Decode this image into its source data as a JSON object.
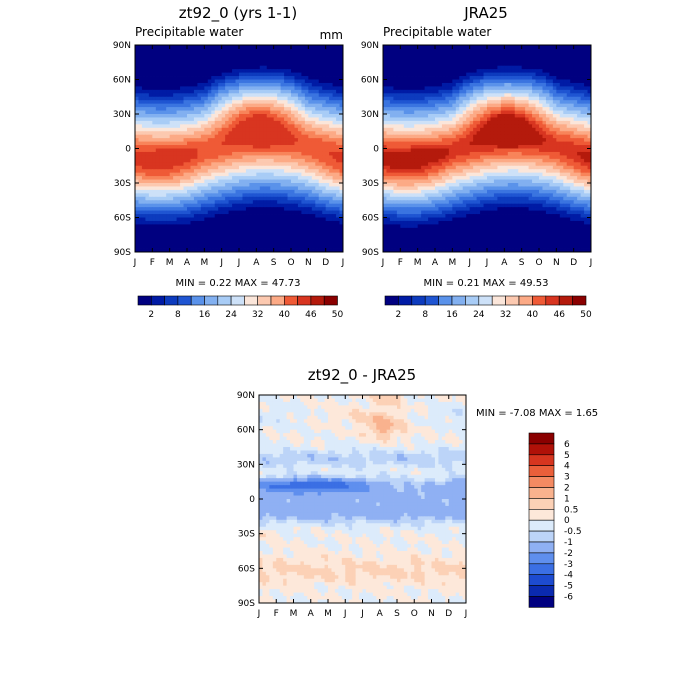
{
  "palette_full": [
    "#000080",
    "#001ba5",
    "#0d3bbe",
    "#1f55d2",
    "#3a74e0",
    "#5a92ea",
    "#82b0f0",
    "#a8ccf6",
    "#cde1f8",
    "#fbe6da",
    "#fcc9b0",
    "#fcaa86",
    "#f8845a",
    "#ef5a36",
    "#d83520",
    "#b41a0c",
    "#8a0000"
  ],
  "charts": [
    {
      "id": "model",
      "title": "zt92_0 (yrs 1-1)",
      "subtitle_left": "Precipitable water",
      "subtitle_right": "mm",
      "min_max": "MIN =    0.22 MAX =   47.73"
    },
    {
      "id": "obs",
      "title": "JRA25",
      "subtitle_left": "Precipitable water",
      "min_max": "MIN =    0.21 MAX =   49.53"
    },
    {
      "id": "diff",
      "title": "zt92_0 - JRA25",
      "min_max": "MIN =  -7.08 MAX =    1.65"
    }
  ],
  "chart_data": [
    {
      "type": "heatmap",
      "title": "zt92_0 (yrs 1-1)",
      "subtitle": "Precipitable water",
      "units": "mm",
      "x_ticks": [
        "J",
        "F",
        "M",
        "A",
        "M",
        "J",
        "J",
        "A",
        "S",
        "O",
        "N",
        "D",
        "J"
      ],
      "y_ticks": [
        "90N",
        "60N",
        "30N",
        "0",
        "30S",
        "60S",
        "90S"
      ],
      "y_values": [
        90,
        60,
        30,
        0,
        -30,
        -60,
        -90
      ],
      "min": 0.22,
      "max": 47.73,
      "colorbar_labels": [
        "2",
        "8",
        "16",
        "24",
        "32",
        "40",
        "46",
        "50"
      ],
      "contour_levels": [
        2,
        4,
        6,
        8,
        10,
        13,
        16,
        20,
        24,
        28,
        32,
        36,
        40,
        43,
        46,
        48,
        50
      ],
      "field": {
        "pw_eq_annual": 45,
        "itcz_amplitude_deg": 8,
        "itcz_peak_month": 7.5,
        "nh_summer_bump": 14,
        "sh_summer_bump": 5,
        "eq_hotspot_month": 2.4,
        "eq_hotspot_lat": -3,
        "eq_hotspot_value": 48
      }
    },
    {
      "type": "heatmap",
      "title": "JRA25",
      "subtitle": "Precipitable water",
      "units": "mm",
      "x_ticks": [
        "J",
        "F",
        "M",
        "A",
        "M",
        "J",
        "J",
        "A",
        "S",
        "O",
        "N",
        "D",
        "J"
      ],
      "y_ticks": [
        "90N",
        "60N",
        "30N",
        "0",
        "30S",
        "60S",
        "90S"
      ],
      "y_values": [
        90,
        60,
        30,
        0,
        -30,
        -60,
        -90
      ],
      "min": 0.21,
      "max": 49.53,
      "colorbar_labels": [
        "2",
        "8",
        "16",
        "24",
        "32",
        "40",
        "46",
        "50"
      ],
      "contour_levels": [
        2,
        4,
        6,
        8,
        10,
        13,
        16,
        20,
        24,
        28,
        32,
        36,
        40,
        43,
        46,
        48,
        50
      ],
      "field": {
        "pw_eq_annual": 47,
        "itcz_amplitude_deg": 8,
        "itcz_peak_month": 7.5,
        "nh_summer_bump": 15,
        "sh_summer_bump": 5,
        "eq_hotspot_month": 2.6,
        "eq_hotspot_lat": -2,
        "eq_hotspot_value": 50
      }
    },
    {
      "type": "heatmap",
      "title": "zt92_0 - JRA25",
      "x_ticks": [
        "J",
        "F",
        "M",
        "A",
        "M",
        "J",
        "J",
        "A",
        "S",
        "O",
        "N",
        "D",
        "J"
      ],
      "y_ticks": [
        "90N",
        "60N",
        "30N",
        "0",
        "30S",
        "60S",
        "90S"
      ],
      "y_values": [
        90,
        60,
        30,
        0,
        -30,
        -60,
        -90
      ],
      "min": -7.08,
      "max": 1.65,
      "colorbar_labels": [
        "6",
        "5",
        "4",
        "3",
        "2",
        "1",
        "0.5",
        "0",
        "-0.5",
        "-1",
        "-2",
        "-3",
        "-4",
        "-5",
        "-6"
      ],
      "contour_levels": [
        -6,
        -5,
        -4,
        -3,
        -2,
        -1,
        -0.5,
        0,
        0.5,
        1,
        2,
        3,
        4,
        5,
        6
      ]
    }
  ]
}
